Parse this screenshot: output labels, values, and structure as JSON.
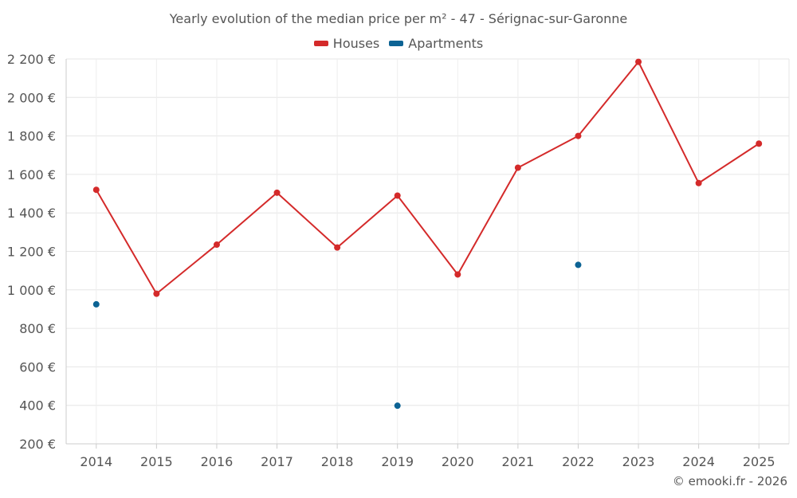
{
  "chart_data": {
    "type": "line",
    "title": "Yearly evolution of the median price per m² - 47 - Sérignac-sur-Garonne",
    "categories": [
      "2014",
      "2015",
      "2016",
      "2017",
      "2018",
      "2019",
      "2020",
      "2021",
      "2022",
      "2023",
      "2024",
      "2025"
    ],
    "series": [
      {
        "name": "Houses",
        "color": "#d42a2a",
        "connected": true,
        "values": [
          1520,
          980,
          1235,
          1505,
          1220,
          1490,
          1080,
          1635,
          1800,
          2185,
          1555,
          1760
        ]
      },
      {
        "name": "Apartments",
        "color": "#0c6394",
        "connected": false,
        "values": [
          925,
          null,
          null,
          null,
          null,
          398,
          null,
          null,
          1130,
          null,
          null,
          null
        ]
      }
    ],
    "yticks": [
      200,
      400,
      600,
      800,
      1000,
      1200,
      1400,
      1600,
      1800,
      2000,
      2200
    ],
    "ytick_labels": [
      "200 €",
      "400 €",
      "600 €",
      "800 €",
      "1 000 €",
      "1 200 €",
      "1 400 €",
      "1 600 €",
      "1 800 €",
      "2 000 €",
      "2 200 €"
    ],
    "ylim": [
      200,
      2200
    ],
    "xlabel": "",
    "ylabel": "",
    "grid": true,
    "legend_position": "top-center"
  },
  "footer": {
    "credit": "© emooki.fr - 2026"
  }
}
